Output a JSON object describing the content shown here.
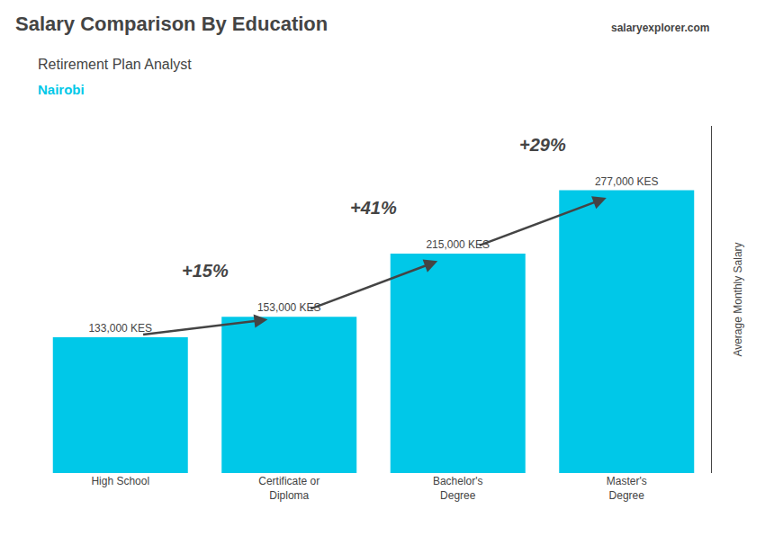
{
  "chart_data": {
    "type": "bar",
    "title": "Salary Comparison By Education",
    "subtitle": "Retirement Plan Analyst",
    "ylabel": "Average Monthly Salary",
    "categories": [
      "High School",
      "Certificate or\nDiploma",
      "Bachelor's\nDegree",
      "Master's\nDegree"
    ],
    "values": [
      133000,
      153000,
      215000,
      277000
    ],
    "value_labels": [
      "133,000 KES",
      "153,000 KES",
      "215,000 KES",
      "277,000 KES"
    ],
    "data_labels": true,
    "color": "#00c8e8",
    "ylim": [
      0,
      340000
    ],
    "grid": false,
    "tick_labels": "x",
    "annotations": [
      {
        "text": "Nairobi"
      },
      {
        "text": "salaryexplorer.com"
      },
      {
        "text": "+15%",
        "from": "High School",
        "to": "Certificate or\nDiploma"
      },
      {
        "text": "+41%",
        "from": "Certificate or\nDiploma",
        "to": "Bachelor's\nDegree"
      },
      {
        "text": "+29%",
        "from": "Bachelor's\nDegree",
        "to": "Master's\nDegree"
      }
    ]
  }
}
